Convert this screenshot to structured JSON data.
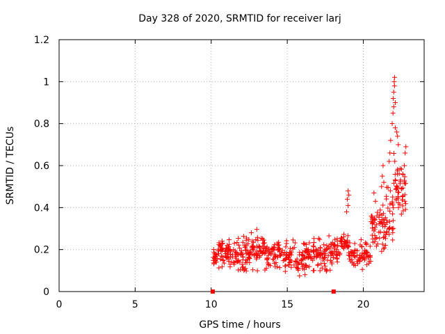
{
  "chart_data": {
    "type": "scatter",
    "title": "Day 328 of 2020, SRMTID for receiver larj",
    "xlabel": "GPS time / hours",
    "ylabel": "SRMTID / TECUs",
    "xlim": [
      0,
      24
    ],
    "ylim": [
      0,
      1.2
    ],
    "xticks": [
      0,
      5,
      10,
      15,
      20
    ],
    "xtick_labels": [
      "0",
      "5",
      "10",
      "15",
      "20"
    ],
    "yticks": [
      0,
      0.2,
      0.4,
      0.6,
      0.8,
      1.0,
      1.2
    ],
    "ytick_labels": [
      "0",
      "0.2",
      "0.4",
      "0.6",
      "0.8",
      "1",
      "1.2"
    ],
    "grid": true,
    "marker": "+",
    "color": "#ff0000",
    "zero_markers": [
      10.1,
      18.05
    ],
    "series": [
      {
        "name": "SRMTID",
        "segments": [
          {
            "x0": 10.1,
            "x1": 10.4,
            "ymin": 0.1,
            "ymax": 0.22,
            "n": 20
          },
          {
            "x0": 10.4,
            "x1": 11.5,
            "ymin": 0.09,
            "ymax": 0.27,
            "n": 60
          },
          {
            "x0": 11.5,
            "x1": 12.5,
            "ymin": 0.06,
            "ymax": 0.3,
            "n": 60
          },
          {
            "x0": 12.5,
            "x1": 13.5,
            "ymin": 0.08,
            "ymax": 0.32,
            "n": 60
          },
          {
            "x0": 13.5,
            "x1": 15.0,
            "ymin": 0.07,
            "ymax": 0.28,
            "n": 80
          },
          {
            "x0": 15.0,
            "x1": 16.5,
            "ymin": 0.06,
            "ymax": 0.27,
            "n": 80
          },
          {
            "x0": 16.5,
            "x1": 18.0,
            "ymin": 0.07,
            "ymax": 0.29,
            "n": 80
          },
          {
            "x0": 18.0,
            "x1": 18.5,
            "ymin": 0.1,
            "ymax": 0.27,
            "n": 25
          },
          {
            "x0": 18.5,
            "x1": 19.0,
            "ymin": 0.18,
            "ymax": 0.29,
            "n": 30
          },
          {
            "x0": 19.0,
            "x1": 19.3,
            "ymin": 0.12,
            "ymax": 0.25,
            "n": 15
          },
          {
            "x0": 19.3,
            "x1": 20.5,
            "ymin": 0.08,
            "ymax": 0.26,
            "n": 60
          },
          {
            "x0": 20.5,
            "x1": 21.5,
            "ymin": 0.13,
            "ymax": 0.45,
            "n": 60
          },
          {
            "x0": 21.5,
            "x1": 22.0,
            "ymin": 0.13,
            "ymax": 0.55,
            "n": 30
          },
          {
            "x0": 22.0,
            "x1": 22.3,
            "ymin": 0.3,
            "ymax": 0.75,
            "n": 20
          },
          {
            "x0": 22.3,
            "x1": 22.8,
            "ymin": 0.26,
            "ymax": 0.65,
            "n": 30
          }
        ],
        "highlights": [
          {
            "x": 18.9,
            "y": 0.38
          },
          {
            "x": 18.95,
            "y": 0.44
          },
          {
            "x": 19.0,
            "y": 0.48
          },
          {
            "x": 19.05,
            "y": 0.46
          },
          {
            "x": 19.0,
            "y": 0.41
          },
          {
            "x": 20.7,
            "y": 0.47
          },
          {
            "x": 20.8,
            "y": 0.43
          },
          {
            "x": 21.2,
            "y": 0.5
          },
          {
            "x": 21.25,
            "y": 0.55
          },
          {
            "x": 21.3,
            "y": 0.6
          },
          {
            "x": 21.35,
            "y": 0.52
          },
          {
            "x": 21.7,
            "y": 0.62
          },
          {
            "x": 21.75,
            "y": 0.66
          },
          {
            "x": 21.8,
            "y": 0.72
          },
          {
            "x": 21.9,
            "y": 0.8
          },
          {
            "x": 21.95,
            "y": 0.85
          },
          {
            "x": 22.0,
            "y": 0.88
          },
          {
            "x": 21.97,
            "y": 0.92
          },
          {
            "x": 22.0,
            "y": 0.95
          },
          {
            "x": 22.05,
            "y": 0.98
          },
          {
            "x": 22.03,
            "y": 1.0
          },
          {
            "x": 22.06,
            "y": 1.02
          },
          {
            "x": 22.1,
            "y": 0.9
          },
          {
            "x": 22.1,
            "y": 0.78
          },
          {
            "x": 22.2,
            "y": 0.76
          },
          {
            "x": 22.25,
            "y": 0.74
          },
          {
            "x": 22.3,
            "y": 0.7
          },
          {
            "x": 22.6,
            "y": 0.56
          },
          {
            "x": 22.7,
            "y": 0.6
          },
          {
            "x": 22.75,
            "y": 0.66
          },
          {
            "x": 22.8,
            "y": 0.69
          },
          {
            "x": 22.7,
            "y": 0.53
          }
        ]
      }
    ]
  }
}
